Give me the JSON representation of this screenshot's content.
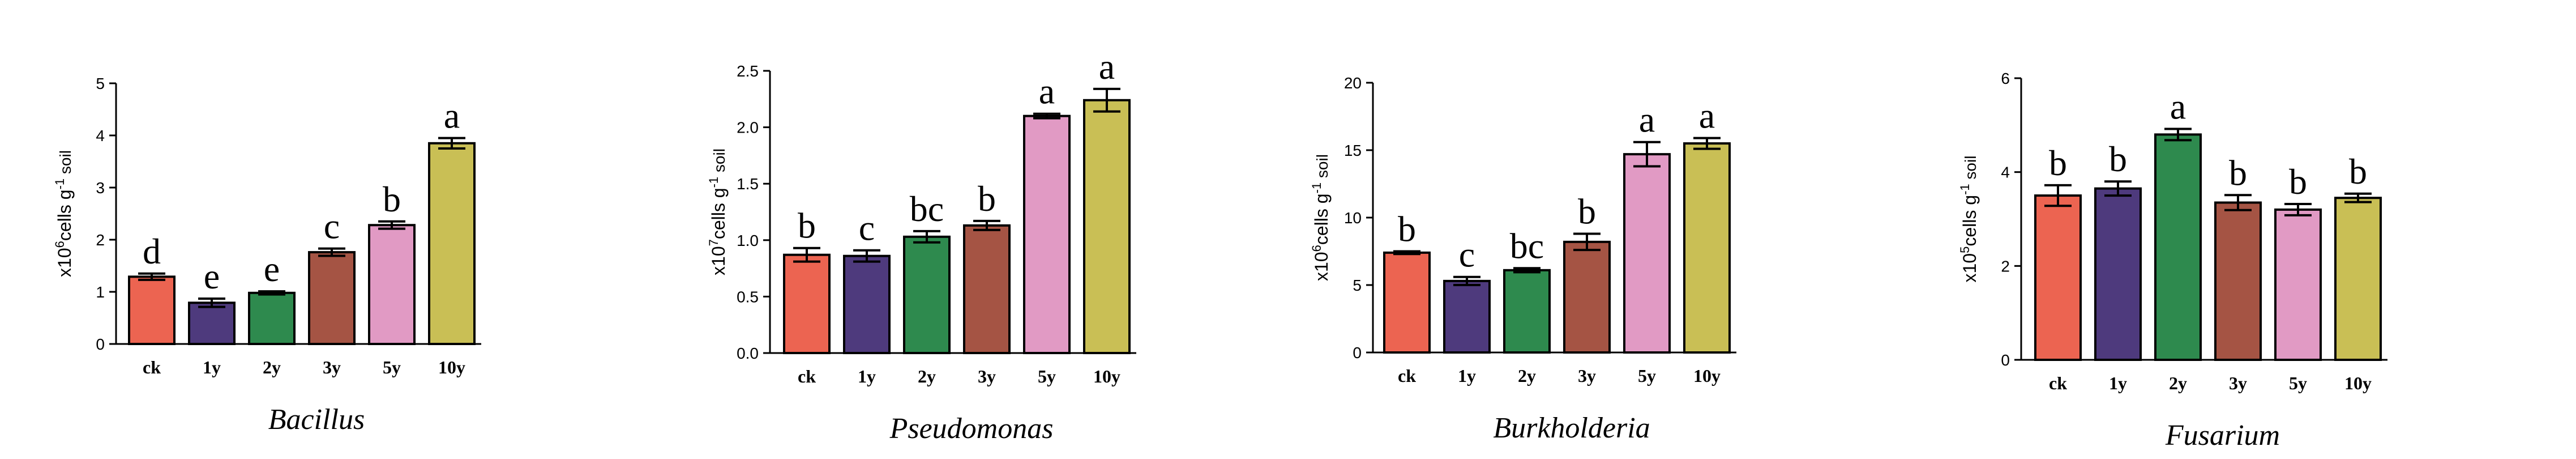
{
  "colors": {
    "ck": "#ec6451",
    "1y": "#4e3a7d",
    "2y": "#2e8a4e",
    "3y": "#a55444",
    "5y": "#e19ac4",
    "10y": "#c9bf55",
    "axis": "#000000"
  },
  "chart_data": [
    {
      "type": "bar",
      "title": "Bacillus",
      "ylabel_prefix": "x10",
      "ylabel_exponent": "6",
      "ylabel_suffix": "cells g",
      "ylabel_suffix_exponent": "-1",
      "ylabel_end": " soil",
      "ylim": [
        0,
        5
      ],
      "yticks": [
        "0",
        "1",
        "2",
        "3",
        "4",
        "5"
      ],
      "categories": [
        "ck",
        "1y",
        "2y",
        "3y",
        "5y",
        "10y"
      ],
      "values": [
        1.29,
        0.79,
        0.98,
        1.76,
        2.28,
        3.85
      ],
      "errors": [
        0.06,
        0.08,
        0.03,
        0.07,
        0.07,
        0.1
      ],
      "letters": [
        "d",
        "e",
        "e",
        "c",
        "b",
        "a"
      ]
    },
    {
      "type": "bar",
      "title": "Pseudomonas",
      "ylabel_prefix": "x10",
      "ylabel_exponent": "7",
      "ylabel_suffix": "cells g",
      "ylabel_suffix_exponent": "-1",
      "ylabel_end": " soil",
      "ylim": [
        0,
        2.5
      ],
      "yticks": [
        "0.0",
        "0.5",
        "1.0",
        "1.5",
        "2.0",
        "2.5"
      ],
      "categories": [
        "ck",
        "1y",
        "2y",
        "3y",
        "5y",
        "10y"
      ],
      "values": [
        0.87,
        0.86,
        1.03,
        1.13,
        2.1,
        2.24
      ],
      "errors": [
        0.06,
        0.05,
        0.05,
        0.04,
        0.02,
        0.1
      ],
      "letters": [
        "b",
        "c",
        "bc",
        "b",
        "a",
        "a"
      ]
    },
    {
      "type": "bar",
      "title": "Burkholderia",
      "ylabel_prefix": "x10",
      "ylabel_exponent": "6",
      "ylabel_suffix": "cells g",
      "ylabel_suffix_exponent": "-1",
      "ylabel_end": " soil",
      "ylim": [
        0,
        20
      ],
      "yticks": [
        "0",
        "5",
        "10",
        "15",
        "20"
      ],
      "categories": [
        "ck",
        "1y",
        "2y",
        "3y",
        "5y",
        "10y"
      ],
      "values": [
        7.4,
        5.3,
        6.1,
        8.2,
        14.7,
        15.5
      ],
      "errors": [
        0.1,
        0.3,
        0.15,
        0.6,
        0.9,
        0.4
      ],
      "letters": [
        "b",
        "c",
        "bc",
        "b",
        "a",
        "a"
      ]
    },
    {
      "type": "bar",
      "title": "Fusarium",
      "ylabel_prefix": "x10",
      "ylabel_exponent": "5",
      "ylabel_suffix": "cells g",
      "ylabel_suffix_exponent": "-1",
      "ylabel_end": " soil",
      "ylim": [
        0,
        6
      ],
      "yticks": [
        "0",
        "2",
        "4",
        "6"
      ],
      "categories": [
        "ck",
        "1y",
        "2y",
        "3y",
        "5y",
        "10y"
      ],
      "values": [
        3.5,
        3.65,
        4.8,
        3.35,
        3.2,
        3.45
      ],
      "errors": [
        0.22,
        0.15,
        0.12,
        0.16,
        0.12,
        0.09
      ],
      "letters": [
        "b",
        "b",
        "a",
        "b",
        "b",
        "b"
      ]
    }
  ]
}
